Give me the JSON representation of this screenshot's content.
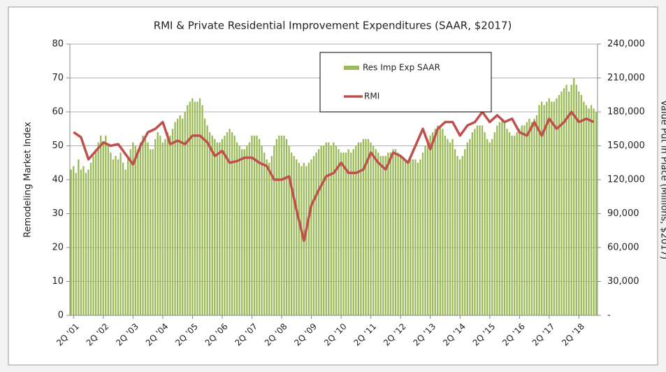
{
  "chart_data": {
    "type": "combo",
    "title": "RMI & Private Residential Improvement Expenditures (SAAR, $2017)",
    "ylabel": "Remodeling Market Index",
    "y2label": "Value Put in Place (Millions, $2017)",
    "categories": [
      "2Q '01",
      null,
      null,
      null,
      "2Q '02",
      null,
      null,
      null,
      "2Q '03",
      null,
      null,
      null,
      "2Q '04",
      null,
      null,
      null,
      "2Q '05",
      null,
      null,
      null,
      "2Q '06",
      null,
      null,
      null,
      "2Q '07",
      null,
      null,
      null,
      "2Q '08",
      null,
      null,
      null,
      "2Q '09",
      null,
      null,
      null,
      "2Q '10",
      null,
      null,
      null,
      "2Q '11",
      null,
      null,
      null,
      "2Q '12",
      null,
      null,
      null,
      "2Q '13",
      null,
      null,
      null,
      "2Q '14",
      null,
      null,
      null,
      "2Q '15",
      null,
      null,
      null,
      "2Q '16",
      null,
      null,
      null,
      "2Q '17",
      null,
      null,
      null,
      "2Q '18",
      null,
      null
    ],
    "ylim": [
      0,
      80
    ],
    "yticks": [
      0,
      10,
      20,
      30,
      40,
      50,
      60,
      70,
      80
    ],
    "y2lim": [
      0,
      240000
    ],
    "y2ticks": [
      {
        "value": 0,
        "label": "-"
      },
      {
        "value": 30000,
        "label": "30,000"
      },
      {
        "value": 60000,
        "label": "60,000"
      },
      {
        "value": 90000,
        "label": "90,000"
      },
      {
        "value": 120000,
        "label": "120,000"
      },
      {
        "value": 150000,
        "label": "150,000"
      },
      {
        "value": 180000,
        "label": "180,000"
      },
      {
        "value": 210000,
        "label": "210,000"
      },
      {
        "value": 240000,
        "label": "240,000"
      }
    ],
    "grid": true,
    "series": [
      {
        "name": "Res Imp Exp SAAR",
        "type": "bar",
        "axis": "y2",
        "color": "#9bbb59",
        "values": [
          [
            129000,
            132000,
            126000
          ],
          [
            138000,
            129000,
            132000
          ],
          [
            126000,
            129000,
            135000
          ],
          [
            141000,
            147000,
            153000
          ],
          [
            159000,
            153000,
            159000
          ],
          [
            150000,
            144000,
            138000
          ],
          [
            141000,
            138000,
            144000
          ],
          [
            135000,
            129000,
            141000
          ],
          [
            147000,
            153000,
            150000
          ],
          [
            147000,
            153000,
            159000
          ],
          [
            156000,
            153000,
            147000
          ],
          [
            147000,
            156000,
            162000
          ],
          [
            159000,
            153000,
            156000
          ],
          [
            162000,
            159000,
            165000
          ],
          [
            171000,
            174000,
            177000
          ],
          [
            174000,
            180000,
            186000
          ],
          [
            189000,
            192000,
            189000
          ],
          [
            189000,
            192000,
            186000
          ],
          [
            174000,
            168000,
            162000
          ],
          [
            159000,
            156000,
            153000
          ],
          [
            153000,
            156000,
            159000
          ],
          [
            162000,
            165000,
            162000
          ],
          [
            159000,
            153000,
            150000
          ],
          [
            147000,
            147000,
            150000
          ],
          [
            153000,
            159000,
            159000
          ],
          [
            159000,
            156000,
            150000
          ],
          [
            144000,
            138000,
            135000
          ],
          [
            141000,
            150000,
            156000
          ],
          [
            159000,
            159000,
            159000
          ],
          [
            156000,
            150000,
            144000
          ],
          [
            141000,
            138000,
            135000
          ],
          [
            132000,
            135000,
            132000
          ],
          [
            135000,
            138000,
            141000
          ],
          [
            144000,
            147000,
            150000
          ],
          [
            150000,
            153000,
            153000
          ],
          [
            150000,
            153000,
            150000
          ],
          [
            147000,
            144000,
            144000
          ],
          [
            144000,
            147000,
            144000
          ],
          [
            147000,
            150000,
            153000
          ],
          [
            153000,
            156000,
            156000
          ],
          [
            156000,
            153000,
            150000
          ],
          [
            147000,
            144000,
            141000
          ],
          [
            141000,
            141000,
            144000
          ],
          [
            144000,
            147000,
            147000
          ],
          [
            144000,
            141000,
            138000
          ],
          [
            138000,
            135000,
            138000
          ],
          [
            138000,
            138000,
            135000
          ],
          [
            138000,
            144000,
            150000
          ],
          [
            156000,
            159000,
            162000
          ],
          [
            165000,
            168000,
            168000
          ],
          [
            165000,
            159000,
            156000
          ],
          [
            153000,
            156000,
            147000
          ],
          [
            141000,
            138000,
            141000
          ],
          [
            147000,
            153000,
            156000
          ],
          [
            162000,
            165000,
            168000
          ],
          [
            168000,
            168000,
            162000
          ],
          [
            156000,
            153000,
            156000
          ],
          [
            162000,
            168000,
            171000
          ],
          [
            174000,
            171000,
            165000
          ],
          [
            162000,
            159000,
            159000
          ],
          [
            162000,
            165000,
            168000
          ],
          [
            168000,
            171000,
            174000
          ],
          [
            171000,
            174000,
            177000
          ],
          [
            186000,
            189000,
            186000
          ],
          [
            189000,
            192000,
            189000
          ],
          [
            189000,
            192000,
            195000
          ],
          [
            198000,
            201000,
            204000
          ],
          [
            198000,
            204000,
            210000
          ],
          [
            204000,
            198000,
            195000
          ],
          [
            189000,
            186000,
            183000
          ],
          [
            186000,
            183000,
            180000
          ]
        ]
      },
      {
        "name": "RMI",
        "type": "line",
        "color": "#c0504d",
        "values": [
          54,
          52.5,
          46,
          48.5,
          51,
          50,
          50.5,
          47.5,
          44.5,
          50,
          54,
          55,
          57,
          50.5,
          51.5,
          50.5,
          53,
          53,
          51,
          47,
          48.5,
          45,
          45.5,
          46.5,
          46.5,
          45,
          44,
          40,
          40,
          41,
          31,
          22,
          32.5,
          37,
          41,
          42,
          45,
          42,
          42,
          43,
          48,
          45,
          43,
          48,
          47,
          45,
          50,
          55,
          49,
          55,
          57,
          57,
          53,
          56,
          57,
          60,
          57,
          59,
          57,
          58,
          54,
          53,
          57,
          53,
          58,
          55,
          57,
          60,
          57,
          58,
          57
        ]
      }
    ]
  }
}
